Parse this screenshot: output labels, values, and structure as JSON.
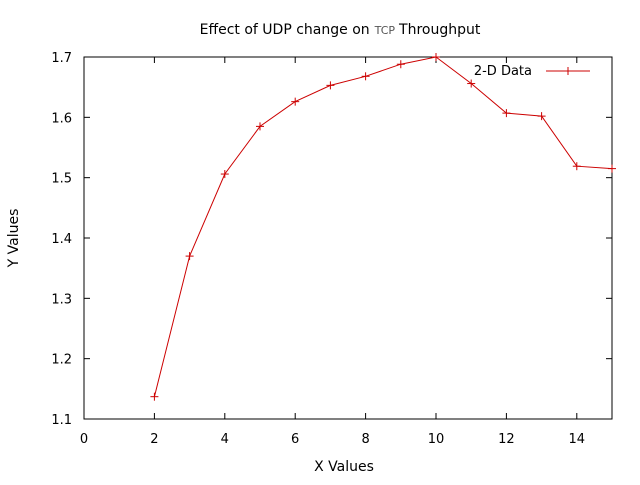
{
  "chart_data": {
    "type": "line",
    "title": "Effect of UDP change on",
    "title_acronym": "TCP",
    "title_suffix": "Throughput",
    "xlabel": "X Values",
    "ylabel": "Y Values",
    "xlim": [
      0,
      15
    ],
    "ylim": [
      1.1,
      1.7
    ],
    "x_ticks": [
      "0",
      "2",
      "4",
      "6",
      "8",
      "10",
      "12",
      "14"
    ],
    "y_ticks": [
      "1.1",
      "1.2",
      "1.3",
      "1.4",
      "1.5",
      "1.6",
      "1.7"
    ],
    "grid": false,
    "legend_position": "top-right",
    "series": [
      {
        "name": "2-D Data",
        "color": "#cc0000",
        "marker": "plus",
        "x": [
          2,
          3,
          4,
          5,
          6,
          7,
          8,
          9,
          10,
          11,
          12,
          13,
          14,
          15
        ],
        "y": [
          1.137,
          1.37,
          1.506,
          1.585,
          1.626,
          1.653,
          1.668,
          1.688,
          1.7,
          1.656,
          1.607,
          1.602,
          1.519,
          1.515
        ]
      }
    ]
  }
}
